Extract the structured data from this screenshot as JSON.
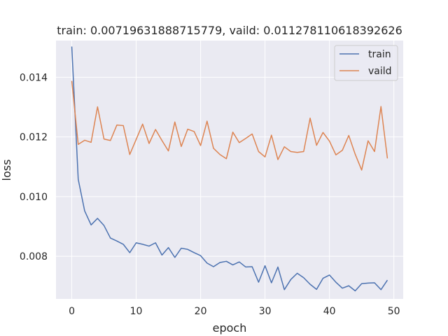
{
  "chart_data": {
    "type": "line",
    "title": "train: 0.00719631888715779, vaild: 0.011278110618392626",
    "xlabel": "epoch",
    "ylabel": "loss",
    "xlim": [
      -2.45,
      51.45
    ],
    "ylim": [
      0.00657,
      0.01523
    ],
    "x_ticks": [
      0,
      10,
      20,
      30,
      40,
      50
    ],
    "y_ticks": [
      0.008,
      0.01,
      0.012,
      0.014
    ],
    "x_tick_labels": [
      "0",
      "10",
      "20",
      "30",
      "40",
      "50"
    ],
    "y_tick_labels": [
      "0.008",
      "0.010",
      "0.012",
      "0.014"
    ],
    "grid": true,
    "legend_position": "top-right",
    "x": [
      0,
      1,
      2,
      3,
      4,
      5,
      6,
      7,
      8,
      9,
      10,
      11,
      12,
      13,
      14,
      15,
      16,
      17,
      18,
      19,
      20,
      21,
      22,
      23,
      24,
      25,
      26,
      27,
      28,
      29,
      30,
      31,
      32,
      33,
      34,
      35,
      36,
      37,
      38,
      39,
      40,
      41,
      42,
      43,
      44,
      45,
      46,
      47,
      48,
      49
    ],
    "series": [
      {
        "name": "train",
        "color": "#4c72b0",
        "values": [
          0.01503,
          0.01058,
          0.00952,
          0.00905,
          0.00927,
          0.00903,
          0.00861,
          0.00851,
          0.0084,
          0.00812,
          0.00845,
          0.0084,
          0.00834,
          0.00845,
          0.00804,
          0.00829,
          0.00796,
          0.00827,
          0.00823,
          0.00812,
          0.00802,
          0.00777,
          0.00765,
          0.00779,
          0.00783,
          0.00771,
          0.00781,
          0.00764,
          0.00765,
          0.00713,
          0.00768,
          0.00711,
          0.00764,
          0.00688,
          0.00722,
          0.00743,
          0.00728,
          0.00706,
          0.00689,
          0.00726,
          0.00737,
          0.00713,
          0.00693,
          0.00701,
          0.00684,
          0.00708,
          0.0071,
          0.00711,
          0.00688,
          0.0072
        ]
      },
      {
        "name": "vaild",
        "color": "#dd8452",
        "values": [
          0.01388,
          0.01175,
          0.01189,
          0.01182,
          0.01301,
          0.01193,
          0.01188,
          0.0124,
          0.01238,
          0.01141,
          0.01192,
          0.01243,
          0.01178,
          0.01225,
          0.01188,
          0.01153,
          0.0125,
          0.01168,
          0.01226,
          0.01218,
          0.01171,
          0.01253,
          0.01162,
          0.01141,
          0.01127,
          0.01216,
          0.01181,
          0.01195,
          0.0121,
          0.01151,
          0.01133,
          0.01206,
          0.01124,
          0.01167,
          0.01151,
          0.01148,
          0.01151,
          0.01263,
          0.01172,
          0.01215,
          0.01186,
          0.0114,
          0.01155,
          0.01205,
          0.01142,
          0.01089,
          0.01187,
          0.01151,
          0.01302,
          0.01128
        ]
      }
    ]
  }
}
